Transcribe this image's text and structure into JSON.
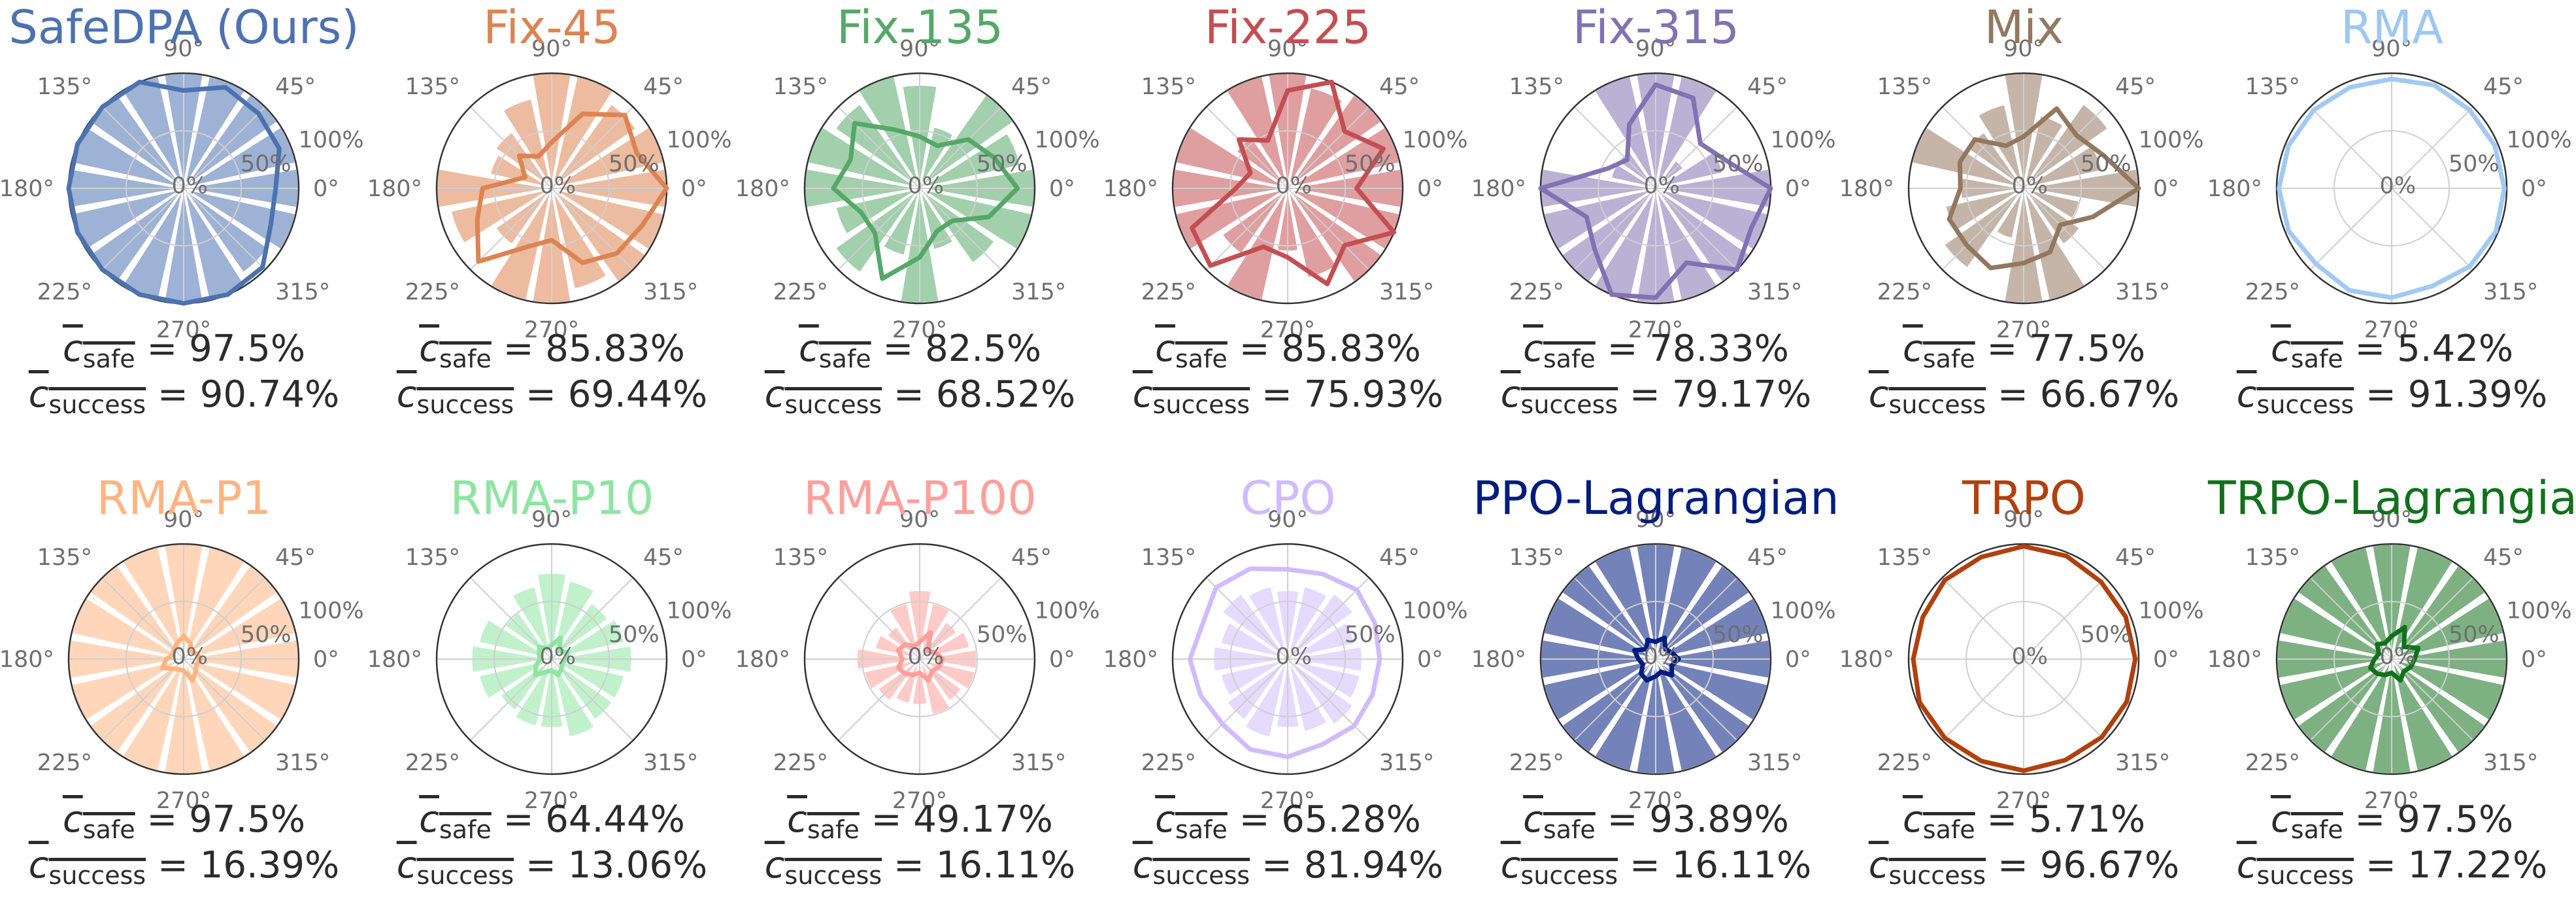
{
  "figure": {
    "stat_safe_symbol": "c",
    "stat_safe_sub": "safe",
    "stat_success_symbol": "c",
    "stat_success_sub": "success"
  },
  "chart_data": [
    {
      "type": "polar-bar",
      "title": "SafeDPA (Ours)",
      "color": "#4c72b0",
      "angle_ticks": [
        "0°",
        "45°",
        "90°",
        "135°",
        "180°",
        "225°",
        "270°",
        "315°"
      ],
      "radial_ticks": [
        "0%",
        "50%",
        "100%"
      ],
      "rlim": [
        0,
        100
      ],
      "bars": [
        100,
        100,
        100,
        100,
        100,
        100,
        100,
        100,
        100,
        100,
        100,
        100,
        100,
        100,
        90,
        100
      ],
      "line": [
        80,
        90,
        92,
        95,
        85,
        100,
        100,
        100,
        100,
        100,
        100,
        100,
        100,
        100,
        97,
        82
      ],
      "safe": "97.5%",
      "success": "90.74%"
    },
    {
      "type": "polar-bar",
      "title": "Fix-45",
      "color": "#dd8452",
      "angle_ticks": [
        "0°",
        "45°",
        "90°",
        "135°",
        "180°",
        "225°",
        "270°",
        "315°"
      ],
      "radial_ticks": [
        "0%",
        "50%",
        "100%"
      ],
      "rlim": [
        0,
        100
      ],
      "bars": [
        100,
        100,
        90,
        100,
        100,
        80,
        60,
        55,
        100,
        90,
        60,
        100,
        100,
        90,
        100,
        100
      ],
      "line": [
        100,
        80,
        90,
        70,
        40,
        30,
        40,
        25,
        60,
        70,
        90,
        55,
        45,
        70,
        80,
        85
      ],
      "safe": "85.83%",
      "success": "69.44%"
    },
    {
      "type": "polar-bar",
      "title": "Fix-135",
      "color": "#55a868",
      "angle_ticks": [
        "0°",
        "45°",
        "90°",
        "135°",
        "180°",
        "225°",
        "270°",
        "315°"
      ],
      "radial_ticks": [
        "0%",
        "50%",
        "100%"
      ],
      "rlim": [
        0,
        100
      ],
      "bars": [
        100,
        90,
        100,
        55,
        90,
        100,
        90,
        100,
        100,
        75,
        90,
        60,
        100,
        55,
        80,
        100
      ],
      "line": [
        85,
        70,
        60,
        40,
        45,
        55,
        80,
        65,
        75,
        55,
        55,
        85,
        60,
        40,
        40,
        65
      ],
      "safe": "82.5%",
      "success": "68.52%"
    },
    {
      "type": "polar-bar",
      "title": "Fix-225",
      "color": "#c44e52",
      "angle_ticks": [
        "0°",
        "45°",
        "90°",
        "135°",
        "180°",
        "225°",
        "270°",
        "315°"
      ],
      "radial_ticks": [
        "0%",
        "50%",
        "100%"
      ],
      "rlim": [
        0,
        100
      ],
      "bars": [
        100,
        100,
        100,
        90,
        100,
        100,
        55,
        100,
        100,
        100,
        70,
        100,
        55,
        80,
        100,
        100
      ],
      "line": [
        60,
        90,
        70,
        100,
        85,
        45,
        60,
        35,
        45,
        90,
        95,
        55,
        60,
        90,
        70,
        100
      ],
      "safe": "85.83%",
      "success": "75.93%"
    },
    {
      "type": "polar-bar",
      "title": "Fix-315",
      "color": "#8172b3",
      "angle_ticks": [
        "0°",
        "45°",
        "90°",
        "135°",
        "180°",
        "225°",
        "270°",
        "315°"
      ],
      "radial_ticks": [
        "0%",
        "50%",
        "100%"
      ],
      "rlim": [
        0,
        100
      ],
      "bars": [
        100,
        60,
        30,
        100,
        100,
        100,
        40,
        40,
        100,
        100,
        100,
        100,
        100,
        100,
        100,
        100
      ],
      "line": [
        100,
        65,
        55,
        85,
        90,
        60,
        35,
        45,
        100,
        65,
        75,
        100,
        95,
        70,
        100,
        90
      ],
      "safe": "78.33%",
      "success": "79.17%"
    },
    {
      "type": "polar-bar",
      "title": "Mix",
      "color": "#937860",
      "angle_ticks": [
        "0°",
        "45°",
        "90°",
        "135°",
        "180°",
        "225°",
        "270°",
        "315°"
      ],
      "radial_ticks": [
        "0%",
        "50%",
        "100%"
      ],
      "rlim": [
        0,
        100
      ],
      "bars": [
        100,
        70,
        90,
        65,
        100,
        75,
        60,
        100,
        55,
        70,
        85,
        45,
        100,
        100,
        60,
        50
      ],
      "line": [
        100,
        75,
        65,
        75,
        45,
        40,
        60,
        60,
        55,
        70,
        70,
        75,
        65,
        60,
        45,
        65
      ],
      "safe": "77.5%",
      "success": "66.67%"
    },
    {
      "type": "polar-bar",
      "title": "RMA",
      "color": "#a1c9f4",
      "angle_ticks": [
        "0°",
        "45°",
        "90°",
        "135°",
        "180°",
        "225°",
        "270°",
        "315°"
      ],
      "radial_ticks": [
        "0%",
        "50%",
        "100%"
      ],
      "rlim": [
        0,
        100
      ],
      "bars": [
        0,
        0,
        0,
        5,
        0,
        0,
        0,
        10,
        0,
        0,
        0,
        0,
        0,
        5,
        0,
        0
      ],
      "line": [
        98,
        97,
        96,
        97,
        95,
        95,
        96,
        97,
        98,
        97,
        93,
        96,
        95,
        92,
        96,
        98
      ],
      "safe": "5.42%",
      "success": "91.39%"
    },
    {
      "type": "polar-bar",
      "title": "RMA-P1",
      "color": "#ffb482",
      "angle_ticks": [
        "0°",
        "45°",
        "90°",
        "135°",
        "180°",
        "225°",
        "270°",
        "315°"
      ],
      "radial_ticks": [
        "0%",
        "50%",
        "100%"
      ],
      "rlim": [
        0,
        100
      ],
      "bars": [
        100,
        100,
        100,
        100,
        100,
        100,
        100,
        100,
        100,
        100,
        100,
        100,
        100,
        100,
        100,
        100
      ],
      "line": [
        15,
        12,
        10,
        15,
        20,
        15,
        12,
        10,
        15,
        20,
        12,
        10,
        10,
        20,
        15,
        12
      ],
      "safe": "97.5%",
      "success": "16.39%"
    },
    {
      "type": "polar-bar",
      "title": "RMA-P10",
      "color": "#8de5a1",
      "angle_ticks": [
        "0°",
        "45°",
        "90°",
        "135°",
        "180°",
        "225°",
        "270°",
        "315°"
      ],
      "radial_ticks": [
        "0%",
        "50%",
        "100%"
      ],
      "rlim": [
        0,
        100
      ],
      "bars": [
        70,
        65,
        60,
        70,
        75,
        65,
        50,
        65,
        70,
        65,
        55,
        60,
        60,
        70,
        65,
        65
      ],
      "line": [
        12,
        15,
        10,
        20,
        12,
        10,
        15,
        12,
        10,
        15,
        20,
        12,
        10,
        15,
        12,
        10
      ],
      "safe": "64.44%",
      "success": "13.06%"
    },
    {
      "type": "polar-bar",
      "title": "RMA-P100",
      "color": "#ff9f9b",
      "angle_ticks": [
        "0°",
        "45°",
        "90°",
        "135°",
        "180°",
        "225°",
        "270°",
        "315°"
      ],
      "radial_ticks": [
        "0%",
        "50%",
        "100%"
      ],
      "rlim": [
        0,
        100
      ],
      "bars": [
        50,
        45,
        40,
        50,
        60,
        50,
        35,
        40,
        55,
        50,
        45,
        40,
        40,
        50,
        45,
        50
      ],
      "line": [
        20,
        15,
        10,
        25,
        15,
        12,
        18,
        20,
        15,
        20,
        18,
        15,
        12,
        20,
        15,
        18
      ],
      "safe": "49.17%",
      "success": "16.11%"
    },
    {
      "type": "polar-bar",
      "title": "CPO",
      "color": "#d0bbff",
      "angle_ticks": [
        "0°",
        "45°",
        "90°",
        "135°",
        "180°",
        "225°",
        "270°",
        "315°"
      ],
      "radial_ticks": [
        "0%",
        "50%",
        "100%"
      ],
      "rlim": [
        0,
        100
      ],
      "bars": [
        65,
        60,
        70,
        65,
        60,
        65,
        70,
        60,
        65,
        60,
        65,
        70,
        60,
        65,
        70,
        65
      ],
      "line": [
        80,
        82,
        85,
        80,
        78,
        85,
        88,
        80,
        85,
        82,
        80,
        85,
        85,
        80,
        82,
        80
      ],
      "safe": "65.28%",
      "success": "81.94%"
    },
    {
      "type": "polar-bar",
      "title": "PPO-Lagrangian",
      "color": "#001c7f",
      "angle_ticks": [
        "0°",
        "45°",
        "90°",
        "135°",
        "180°",
        "225°",
        "270°",
        "315°"
      ],
      "radial_ticks": [
        "0%",
        "50%",
        "100%"
      ],
      "rlim": [
        0,
        100
      ],
      "bars": [
        100,
        100,
        100,
        100,
        100,
        100,
        100,
        100,
        100,
        100,
        100,
        100,
        100,
        100,
        100,
        100
      ],
      "line": [
        20,
        15,
        12,
        20,
        15,
        18,
        12,
        20,
        15,
        12,
        18,
        20,
        15,
        12,
        20,
        15
      ],
      "safe": "93.89%",
      "success": "16.11%"
    },
    {
      "type": "polar-bar",
      "title": "TRPO",
      "color": "#b1400d",
      "angle_ticks": [
        "0°",
        "45°",
        "90°",
        "135°",
        "180°",
        "225°",
        "270°",
        "315°"
      ],
      "radial_ticks": [
        "0%",
        "50%",
        "100%"
      ],
      "rlim": [
        0,
        100
      ],
      "bars": [
        0,
        0,
        5,
        0,
        0,
        0,
        5,
        0,
        0,
        0,
        0,
        5,
        0,
        0,
        0,
        0
      ],
      "line": [
        97,
        96,
        95,
        97,
        98,
        96,
        97,
        95,
        96,
        98,
        97,
        96,
        97,
        95,
        96,
        97
      ],
      "safe": "5.71%",
      "success": "96.67%"
    },
    {
      "type": "polar-bar",
      "title": "TRPO-Lagrangian",
      "color": "#12711c",
      "angle_ticks": [
        "0°",
        "45°",
        "90°",
        "135°",
        "180°",
        "225°",
        "270°",
        "315°"
      ],
      "radial_ticks": [
        "0%",
        "50%",
        "100%"
      ],
      "rlim": [
        0,
        100
      ],
      "bars": [
        100,
        100,
        100,
        100,
        100,
        100,
        100,
        100,
        100,
        100,
        100,
        100,
        100,
        100,
        100,
        100
      ],
      "line": [
        20,
        25,
        15,
        30,
        20,
        15,
        18,
        12,
        15,
        20,
        18,
        15,
        12,
        20,
        15,
        18
      ],
      "safe": "97.5%",
      "success": "17.22%"
    }
  ]
}
